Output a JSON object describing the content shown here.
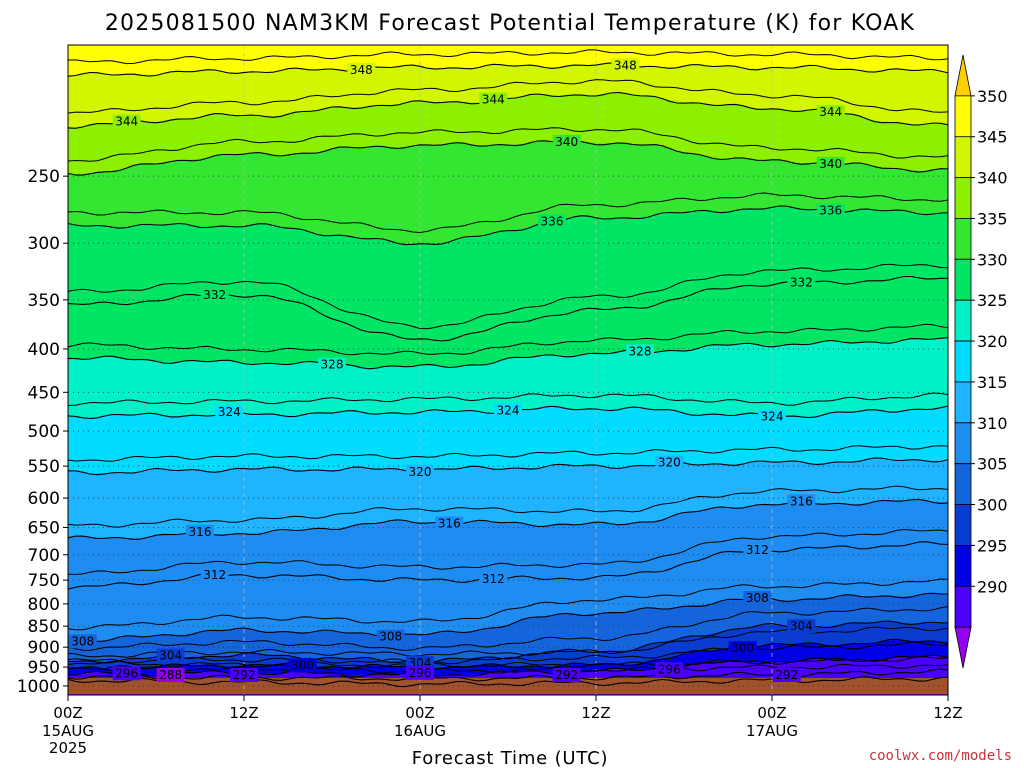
{
  "chart_data": {
    "type": "contour",
    "title": "2025081500 NAM3KM Forecast Potential Temperature (K) for KOAK",
    "xlabel": "Forecast Time (UTC)",
    "ylabel": "",
    "credit": "coolwx.com/models",
    "x_hours": [
      0,
      60
    ],
    "x_ticks": [
      {
        "hour": 0,
        "label": "00Z",
        "date": "15AUG",
        "year": "2025"
      },
      {
        "hour": 12,
        "label": "12Z",
        "date": "",
        "year": ""
      },
      {
        "hour": 24,
        "label": "00Z",
        "date": "16AUG",
        "year": ""
      },
      {
        "hour": 36,
        "label": "12Z",
        "date": "",
        "year": ""
      },
      {
        "hour": 48,
        "label": "00Z",
        "date": "17AUG",
        "year": ""
      },
      {
        "hour": 60,
        "label": "12Z",
        "date": "",
        "year": ""
      }
    ],
    "y_pressure_hpa_range": [
      1025,
      175
    ],
    "y_ticks": [
      250,
      300,
      350,
      400,
      450,
      500,
      550,
      600,
      650,
      700,
      750,
      800,
      850,
      900,
      950,
      1000
    ],
    "y_scale": "log-pressure",
    "grid": true,
    "colorbar": {
      "ticks": [
        290,
        295,
        300,
        305,
        310,
        315,
        320,
        325,
        330,
        335,
        340,
        345,
        350
      ],
      "colors": [
        "#9600f0",
        "#4b00ff",
        "#0000e6",
        "#0a3cd2",
        "#1464dc",
        "#1e8cf0",
        "#1eb4ff",
        "#00dcff",
        "#00f0c8",
        "#00e664",
        "#32e632",
        "#8cf000",
        "#d2f500",
        "#ffff00",
        "#ffd000"
      ]
    },
    "isentropes_K": [
      {
        "theta": 348,
        "p": [
          190,
          188,
          186,
          185,
          186,
          188
        ]
      },
      {
        "theta": 344,
        "p": [
          218,
          212,
          205,
          200,
          208,
          218
        ]
      },
      {
        "theta": 340,
        "p": [
          248,
          236,
          230,
          228,
          240,
          246
        ]
      },
      {
        "theta": 336,
        "p": [
          286,
          286,
          300,
          280,
          273,
          276
        ]
      },
      {
        "theta": 332,
        "p": [
          355,
          345,
          390,
          360,
          335,
          330
        ]
      },
      {
        "theta": 328,
        "p": [
          410,
          415,
          420,
          405,
          395,
          390
        ]
      },
      {
        "theta": 324,
        "p": [
          480,
          478,
          475,
          470,
          480,
          470
        ]
      },
      {
        "theta": 320,
        "p": [
          560,
          555,
          555,
          550,
          545,
          540
        ]
      },
      {
        "theta": 316,
        "p": [
          670,
          660,
          640,
          645,
          610,
          605
        ]
      },
      {
        "theta": 312,
        "p": [
          765,
          740,
          750,
          745,
          690,
          680
        ]
      },
      {
        "theta": 308,
        "p": [
          885,
          860,
          870,
          820,
          790,
          780
        ]
      },
      {
        "theta": 304,
        "p": [
          935,
          920,
          935,
          910,
          850,
          840
        ]
      },
      {
        "theta": 300,
        "p": [
          955,
          945,
          950,
          945,
          895,
          885
        ]
      },
      {
        "theta": 296,
        "p": [
          968,
          965,
          970,
          960,
          935,
          925
        ]
      },
      {
        "theta": 292,
        "p": [
          975,
          978,
          980,
          978,
          970,
          962
        ]
      },
      {
        "theta": 288,
        "p": [
          985,
          990,
          995,
          992,
          985,
          980
        ]
      }
    ],
    "labels_shown": [
      {
        "theta": 348,
        "hour": 20
      },
      {
        "theta": 348,
        "hour": 38
      },
      {
        "theta": 344,
        "hour": 4
      },
      {
        "theta": 344,
        "hour": 29
      },
      {
        "theta": 344,
        "hour": 52
      },
      {
        "theta": 340,
        "hour": 34
      },
      {
        "theta": 340,
        "hour": 52
      },
      {
        "theta": 336,
        "hour": 33
      },
      {
        "theta": 336,
        "hour": 52
      },
      {
        "theta": 332,
        "hour": 10
      },
      {
        "theta": 332,
        "hour": 50
      },
      {
        "theta": 328,
        "hour": 18
      },
      {
        "theta": 328,
        "hour": 39
      },
      {
        "theta": 324,
        "hour": 11
      },
      {
        "theta": 324,
        "hour": 30
      },
      {
        "theta": 324,
        "hour": 48
      },
      {
        "theta": 320,
        "hour": 24
      },
      {
        "theta": 320,
        "hour": 41
      },
      {
        "theta": 316,
        "hour": 9
      },
      {
        "theta": 316,
        "hour": 26
      },
      {
        "theta": 316,
        "hour": 50
      },
      {
        "theta": 312,
        "hour": 10
      },
      {
        "theta": 312,
        "hour": 29
      },
      {
        "theta": 312,
        "hour": 47
      },
      {
        "theta": 308,
        "hour": 1
      },
      {
        "theta": 308,
        "hour": 22
      },
      {
        "theta": 308,
        "hour": 47
      },
      {
        "theta": 304,
        "hour": 7
      },
      {
        "theta": 304,
        "hour": 24
      },
      {
        "theta": 304,
        "hour": 50
      },
      {
        "theta": 300,
        "hour": 16
      },
      {
        "theta": 300,
        "hour": 46
      },
      {
        "theta": 296,
        "hour": 4
      },
      {
        "theta": 296,
        "hour": 24
      },
      {
        "theta": 296,
        "hour": 41
      },
      {
        "theta": 292,
        "hour": 12
      },
      {
        "theta": 292,
        "hour": 34
      },
      {
        "theta": 292,
        "hour": 49
      },
      {
        "theta": 288,
        "hour": 7
      }
    ],
    "ground_color": "#a0522d"
  }
}
